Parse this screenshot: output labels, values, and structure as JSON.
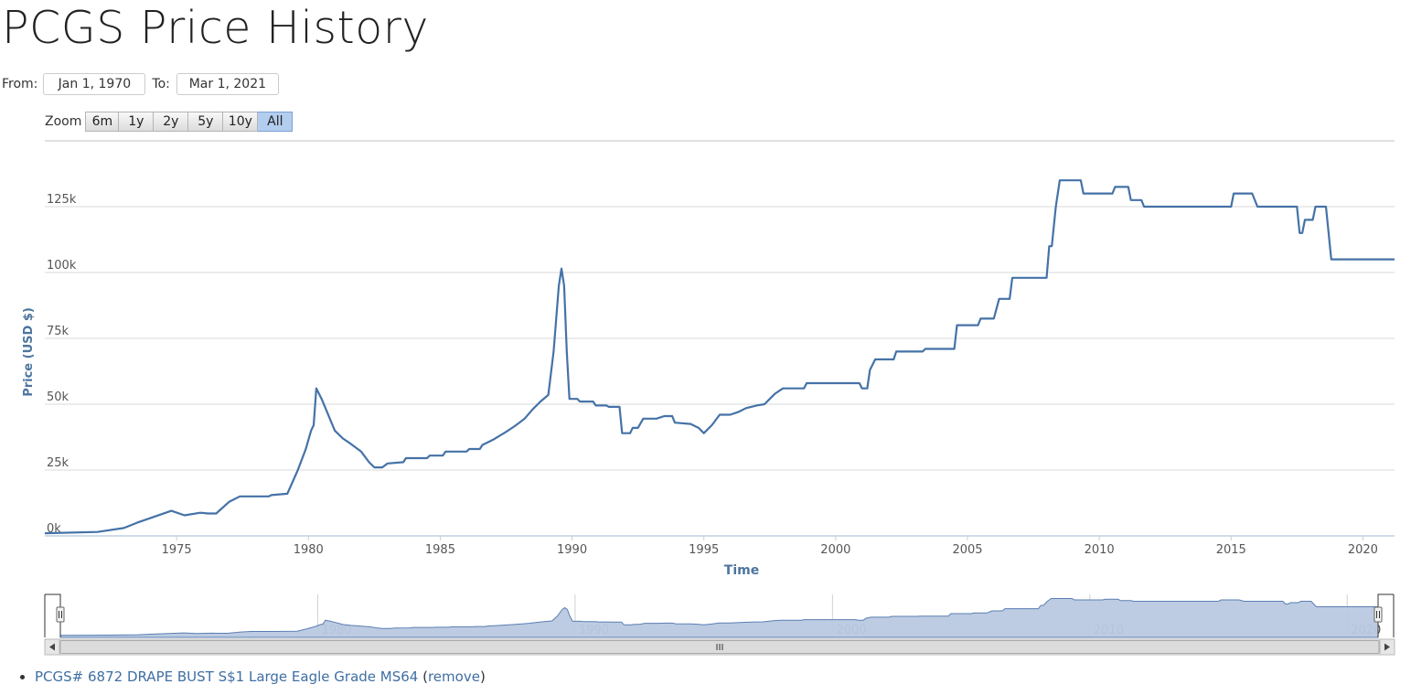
{
  "page": {
    "title": "PCGS Price History"
  },
  "range": {
    "from_label": "From:",
    "from_value": "Jan 1, 1970",
    "to_label": "To:",
    "to_value": "Mar 1, 2021"
  },
  "zoom": {
    "label": "Zoom",
    "buttons": [
      "6m",
      "1y",
      "2y",
      "5y",
      "10y",
      "All"
    ],
    "active": "All"
  },
  "footer": {
    "item_link": "PCGS# 6872 DRAPE BUST S$1 Large Eagle Grade MS64",
    "paren_open": " (",
    "remove_label": "remove",
    "paren_close": ")"
  },
  "colors": {
    "line": "#4572a7",
    "navigator_fill": "#b9c9e0",
    "navigator_line": "#5b7fb3"
  },
  "chart_data": {
    "type": "line",
    "title": "",
    "xlabel": "Time",
    "ylabel": "Price (USD $)",
    "xlim": [
      1970.0,
      2021.2
    ],
    "ylim": [
      0,
      150000
    ],
    "y_ticks": [
      0,
      25000,
      50000,
      75000,
      100000,
      125000
    ],
    "y_tick_labels": [
      "0k",
      "25k",
      "50k",
      "75k",
      "100k",
      "125k"
    ],
    "x_ticks": [
      1975,
      1980,
      1985,
      1990,
      1995,
      2000,
      2005,
      2010,
      2015,
      2020
    ],
    "x_tick_labels": [
      "1975",
      "1980",
      "1985",
      "1990",
      "1995",
      "2000",
      "2005",
      "2010",
      "2015",
      "2020"
    ],
    "navigator_ticks": [
      1980,
      1990,
      2000,
      2010,
      2020
    ],
    "navigator_tick_labels": [
      "1980",
      "1990",
      "2000",
      "2010",
      "2020"
    ],
    "grid": true,
    "series": [
      {
        "points": [
          [
            1970.0,
            1000
          ],
          [
            1972.0,
            1500
          ],
          [
            1973.0,
            3000
          ],
          [
            1973.5,
            5000
          ],
          [
            1974.8,
            9500
          ],
          [
            1975.3,
            7800
          ],
          [
            1975.9,
            8800
          ],
          [
            1976.2,
            8500
          ],
          [
            1976.5,
            8500
          ],
          [
            1977.0,
            13000
          ],
          [
            1977.4,
            15000
          ],
          [
            1978.5,
            15000
          ],
          [
            1978.6,
            15500
          ],
          [
            1979.2,
            16000
          ],
          [
            1979.6,
            25000
          ],
          [
            1979.9,
            33000
          ],
          [
            1980.1,
            40000
          ],
          [
            1980.2,
            42000
          ],
          [
            1980.3,
            56000
          ],
          [
            1980.5,
            52000
          ],
          [
            1981.0,
            40000
          ],
          [
            1981.3,
            37000
          ],
          [
            1981.6,
            35000
          ],
          [
            1982.0,
            32000
          ],
          [
            1982.3,
            28000
          ],
          [
            1982.5,
            26000
          ],
          [
            1982.8,
            26000
          ],
          [
            1983.0,
            27500
          ],
          [
            1983.6,
            28000
          ],
          [
            1983.7,
            29500
          ],
          [
            1984.5,
            29500
          ],
          [
            1984.6,
            30500
          ],
          [
            1985.1,
            30500
          ],
          [
            1985.2,
            32000
          ],
          [
            1986.0,
            32000
          ],
          [
            1986.1,
            33000
          ],
          [
            1986.5,
            33000
          ],
          [
            1986.6,
            34500
          ],
          [
            1987.0,
            36500
          ],
          [
            1987.5,
            39500
          ],
          [
            1987.8,
            41500
          ],
          [
            1988.0,
            43000
          ],
          [
            1988.2,
            44500
          ],
          [
            1988.5,
            48000
          ],
          [
            1988.8,
            51000
          ],
          [
            1989.1,
            53500
          ],
          [
            1989.3,
            70000
          ],
          [
            1989.5,
            95000
          ],
          [
            1989.6,
            101500
          ],
          [
            1989.7,
            95000
          ],
          [
            1989.8,
            70000
          ],
          [
            1989.9,
            52000
          ],
          [
            1990.2,
            52000
          ],
          [
            1990.3,
            51000
          ],
          [
            1990.8,
            51000
          ],
          [
            1990.9,
            49500
          ],
          [
            1991.3,
            49500
          ],
          [
            1991.4,
            49000
          ],
          [
            1991.8,
            49000
          ],
          [
            1991.9,
            39000
          ],
          [
            1992.2,
            39000
          ],
          [
            1992.3,
            41000
          ],
          [
            1992.5,
            41000
          ],
          [
            1992.7,
            44500
          ],
          [
            1993.2,
            44500
          ],
          [
            1993.5,
            45500
          ],
          [
            1993.8,
            45500
          ],
          [
            1993.9,
            43000
          ],
          [
            1994.5,
            42500
          ],
          [
            1994.8,
            41000
          ],
          [
            1995.0,
            39000
          ],
          [
            1995.3,
            42000
          ],
          [
            1995.6,
            46000
          ],
          [
            1996.0,
            46000
          ],
          [
            1996.3,
            47000
          ],
          [
            1996.6,
            48500
          ],
          [
            1997.0,
            49500
          ],
          [
            1997.3,
            50000
          ],
          [
            1997.5,
            52000
          ],
          [
            1997.7,
            54000
          ],
          [
            1998.0,
            56000
          ],
          [
            1998.8,
            56000
          ],
          [
            1998.9,
            58000
          ],
          [
            2000.9,
            58000
          ],
          [
            2001.0,
            56000
          ],
          [
            2001.2,
            56000
          ],
          [
            2001.3,
            63000
          ],
          [
            2001.5,
            67000
          ],
          [
            2002.2,
            67000
          ],
          [
            2002.3,
            70000
          ],
          [
            2003.3,
            70000
          ],
          [
            2003.4,
            71000
          ],
          [
            2004.5,
            71000
          ],
          [
            2004.6,
            80000
          ],
          [
            2005.4,
            80000
          ],
          [
            2005.5,
            82500
          ],
          [
            2006.0,
            82500
          ],
          [
            2006.2,
            90000
          ],
          [
            2006.6,
            90000
          ],
          [
            2006.7,
            98000
          ],
          [
            2008.0,
            98000
          ],
          [
            2008.1,
            110000
          ],
          [
            2008.2,
            110000
          ],
          [
            2008.35,
            125000
          ],
          [
            2008.5,
            135000
          ],
          [
            2009.3,
            135000
          ],
          [
            2009.4,
            130000
          ],
          [
            2010.5,
            130000
          ],
          [
            2010.6,
            132500
          ],
          [
            2011.1,
            132500
          ],
          [
            2011.2,
            127500
          ],
          [
            2011.6,
            127500
          ],
          [
            2011.7,
            125000
          ],
          [
            2015.0,
            125000
          ],
          [
            2015.1,
            130000
          ],
          [
            2015.8,
            130000
          ],
          [
            2016.0,
            125000
          ],
          [
            2017.5,
            125000
          ],
          [
            2017.6,
            115000
          ],
          [
            2017.7,
            115000
          ],
          [
            2017.8,
            120000
          ],
          [
            2018.1,
            120000
          ],
          [
            2018.2,
            125000
          ],
          [
            2018.6,
            125000
          ],
          [
            2018.8,
            105000
          ],
          [
            2021.2,
            105000
          ]
        ]
      }
    ]
  }
}
